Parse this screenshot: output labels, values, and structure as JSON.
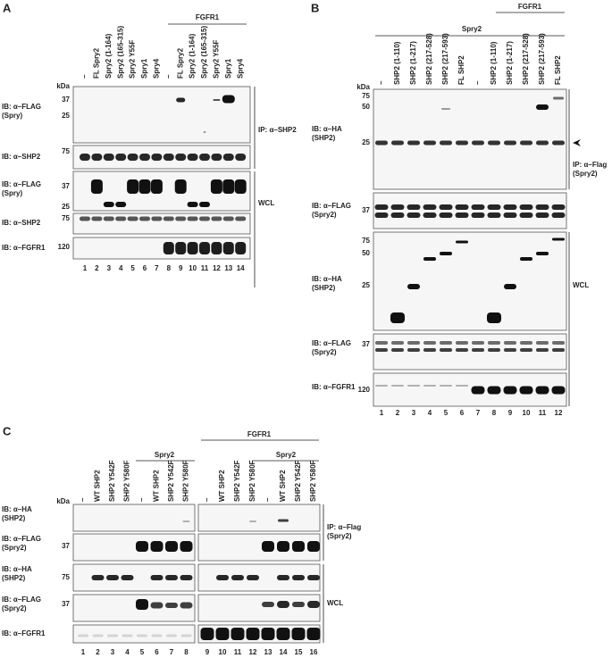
{
  "panels": [
    {
      "label": "A",
      "kda": "kDa",
      "groups": [
        "FGFR1"
      ],
      "lane_headers": [
        "–",
        "FL Spry2",
        "Spry2 (1-164)",
        "Spry2 (165-315)",
        "Spry2 Y55F",
        "Spry1",
        "Spry4",
        "–",
        "FL Spry2",
        "Spry2 (1-164)",
        "Spry2 (165-315)",
        "Spry2 Y55F",
        "Spry1",
        "Spry4"
      ],
      "blots": [
        {
          "label": [
            "IB: α–FLAG",
            "(Spry)"
          ],
          "markers": [
            37,
            25
          ]
        },
        {
          "label": [
            "IB: α–SHP2"
          ],
          "markers": [
            75
          ]
        },
        {
          "label": [
            "IB: α–FLAG",
            "(Spry)"
          ],
          "markers": [
            37,
            25
          ]
        },
        {
          "label": [
            "IB: α–SHP2"
          ],
          "markers": [
            75
          ]
        },
        {
          "label": [
            "IB: α–FGFR1"
          ],
          "markers": [
            120
          ]
        }
      ],
      "side_labels": [
        [
          "IP: α–SHP2"
        ],
        [
          "WCL"
        ]
      ],
      "lane_numbers": [
        1,
        2,
        3,
        4,
        5,
        6,
        7,
        8,
        9,
        10,
        11,
        12,
        13,
        14
      ]
    },
    {
      "label": "B",
      "kda": "kDa",
      "groups": [
        "FGFR1",
        "Spry2"
      ],
      "lane_headers": [
        "–",
        "SHP2 (1-110)",
        "SHP2 (1-217)",
        "SHP2 (217-528)",
        "SHP2 (217-593)",
        "FL SHP2",
        "–",
        "SHP2 (1-110)",
        "SHP2 (1-217)",
        "SHP2 (217-528)",
        "SHP2 (217-593)",
        "FL SHP2"
      ],
      "blots": [
        {
          "label": [
            "IB: α–HA",
            "(SHP2)"
          ],
          "markers": [
            75,
            50,
            25
          ]
        },
        {
          "label": [
            "IB: α–FLAG",
            "(Spry2)"
          ],
          "markers": [
            37
          ]
        },
        {
          "label": [
            "IB: α–HA",
            "(SHP2)"
          ],
          "markers": [
            75,
            50,
            25
          ]
        },
        {
          "label": [
            "IB: α–FLAG",
            "(Spry2)"
          ],
          "markers": [
            37
          ]
        },
        {
          "label": [
            "IB: α–FGFR1"
          ],
          "markers": [
            120
          ]
        }
      ],
      "side_labels": [
        [
          "IP: α–Flag",
          "(Spry2)"
        ],
        [
          "WCL"
        ]
      ],
      "lane_numbers": [
        1,
        2,
        3,
        4,
        5,
        6,
        7,
        8,
        9,
        10,
        11,
        12
      ]
    },
    {
      "label": "C",
      "kda": "kDa",
      "groups": [
        "FGFR1",
        "Spry2",
        "Spry2"
      ],
      "lane_headers": [
        "–",
        "WT SHP2",
        "SHP2 Y542F",
        "SHP2 Y580F",
        "–",
        "WT SHP2",
        "SHP2 Y542F",
        "SHP2 Y580F",
        "–",
        "WT SHP2",
        "SHP2 Y542F",
        "SHP2 Y580F",
        "–",
        "WT SHP2",
        "SHP2 Y542F",
        "SHP2 Y580F"
      ],
      "blots": [
        {
          "label": [
            "IB: α–HA",
            "(SHP2)"
          ],
          "markers": []
        },
        {
          "label": [
            "IB: α–FLAG",
            "(Spry2)"
          ],
          "markers": [
            37
          ]
        },
        {
          "label": [
            "IB: α–HA",
            "(SHP2)"
          ],
          "markers": [
            75
          ]
        },
        {
          "label": [
            "IB: α–FLAG",
            "(Spry2)"
          ],
          "markers": [
            37
          ]
        },
        {
          "label": [
            "IB: α–FGFR1"
          ],
          "markers": []
        }
      ],
      "side_labels": [
        [
          "IP: α–Flag",
          "(Spry2)"
        ],
        [
          "WCL"
        ]
      ],
      "lane_numbers": [
        1,
        2,
        3,
        4,
        5,
        6,
        7,
        8,
        9,
        10,
        11,
        12,
        13,
        14,
        15,
        16
      ]
    }
  ]
}
